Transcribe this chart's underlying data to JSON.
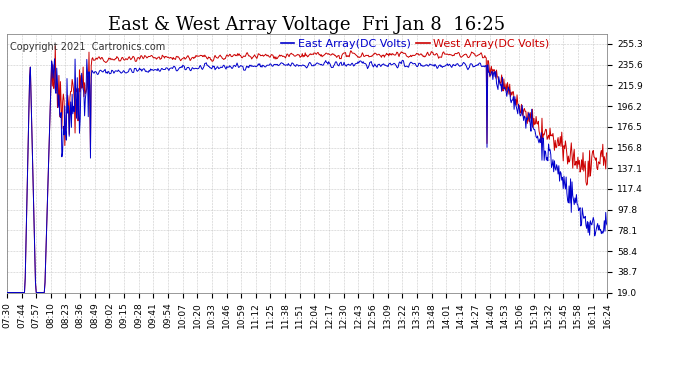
{
  "title": "East & West Array Voltage  Fri Jan 8  16:25",
  "copyright": "Copyright 2021  Cartronics.com",
  "legend_east": "East Array(DC Volts)",
  "legend_west": "West Array(DC Volts)",
  "east_color": "#0000cc",
  "west_color": "#cc0000",
  "background_color": "#ffffff",
  "grid_color": "#bbbbbb",
  "yticks": [
    19.0,
    38.7,
    58.4,
    78.1,
    97.8,
    117.4,
    137.1,
    156.8,
    176.5,
    196.2,
    215.9,
    235.6,
    255.3
  ],
  "ylim": [
    19.0,
    265.0
  ],
  "xtick_labels": [
    "07:30",
    "07:44",
    "07:57",
    "08:10",
    "08:23",
    "08:36",
    "08:49",
    "09:02",
    "09:15",
    "09:28",
    "09:41",
    "09:54",
    "10:07",
    "10:20",
    "10:33",
    "10:46",
    "10:59",
    "11:12",
    "11:25",
    "11:38",
    "11:51",
    "12:04",
    "12:17",
    "12:30",
    "12:43",
    "12:56",
    "13:09",
    "13:22",
    "13:35",
    "13:48",
    "14:01",
    "14:14",
    "14:27",
    "14:40",
    "14:53",
    "15:06",
    "15:19",
    "15:32",
    "15:45",
    "15:58",
    "16:11",
    "16:24"
  ],
  "title_fontsize": 13,
  "tick_fontsize": 6.5,
  "legend_fontsize": 8,
  "copyright_fontsize": 7,
  "linewidth": 0.7,
  "seed": 42
}
